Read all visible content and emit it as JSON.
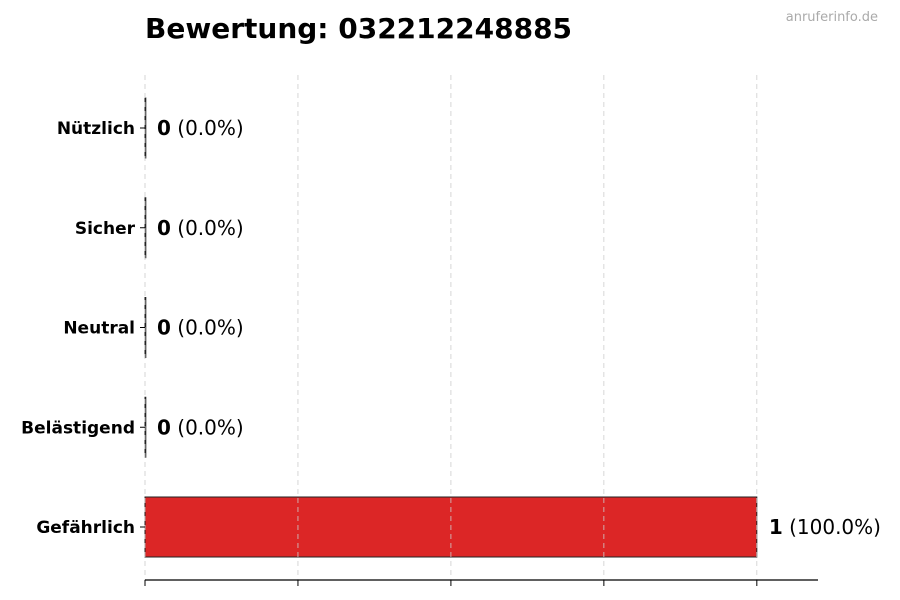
{
  "title": "Bewertung: 032212248885",
  "watermark": "anruferinfo.de",
  "chart_data": {
    "type": "bar",
    "orientation": "horizontal",
    "title": "Bewertung: 032212248885",
    "categories": [
      "Nützlich",
      "Sicher",
      "Neutral",
      "Belästigend",
      "Gefährlich"
    ],
    "values": [
      0,
      0,
      0,
      0,
      1
    ],
    "value_labels": [
      "(0.0%)",
      "(0.0%)",
      "(0.0%)",
      "(0.0%)",
      "(100.0%)"
    ],
    "xlim": [
      0,
      1.1
    ],
    "xticks": [
      0,
      0.25,
      0.5,
      0.75,
      1
    ],
    "grid": true,
    "bar_color": "#dc2626",
    "xlabel": "",
    "ylabel": ""
  }
}
